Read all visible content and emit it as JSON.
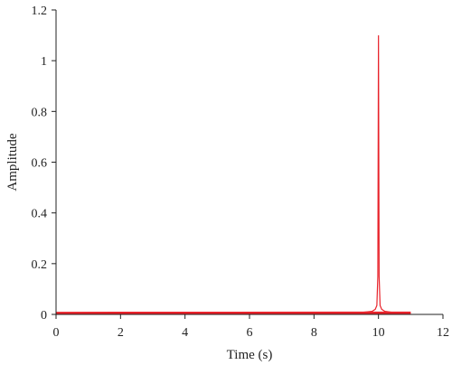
{
  "chart_data": {
    "type": "line",
    "title": "",
    "xlabel": "Time (s)",
    "ylabel": "Amplitude",
    "xlim": [
      0,
      12
    ],
    "ylim": [
      0,
      1.2
    ],
    "x_ticks": [
      0,
      2,
      4,
      6,
      8,
      10,
      12
    ],
    "x_tick_labels": [
      "0",
      "2",
      "4",
      "6",
      "8",
      "10",
      "12"
    ],
    "y_ticks": [
      0,
      0.2,
      0.4,
      0.6,
      0.8,
      1,
      1.2
    ],
    "y_tick_labels": [
      "0",
      "0.2",
      "0.4",
      "0.6",
      "0.8",
      "1",
      "1.2"
    ],
    "grid": false,
    "legend": "none",
    "series": [
      {
        "color": "#e8222a",
        "x": [
          0,
          1,
          2,
          3,
          4,
          5,
          6,
          7,
          8,
          9,
          9.5,
          9.8,
          9.9,
          9.95,
          9.98,
          10.0,
          10.02,
          10.05,
          10.1,
          10.2,
          10.5,
          11.0
        ],
        "y": [
          0.005,
          0.006,
          0.005,
          0.006,
          0.005,
          0.006,
          0.005,
          0.006,
          0.006,
          0.007,
          0.008,
          0.012,
          0.02,
          0.035,
          0.15,
          1.1,
          0.15,
          0.035,
          0.02,
          0.012,
          0.007,
          0.006
        ]
      }
    ]
  }
}
